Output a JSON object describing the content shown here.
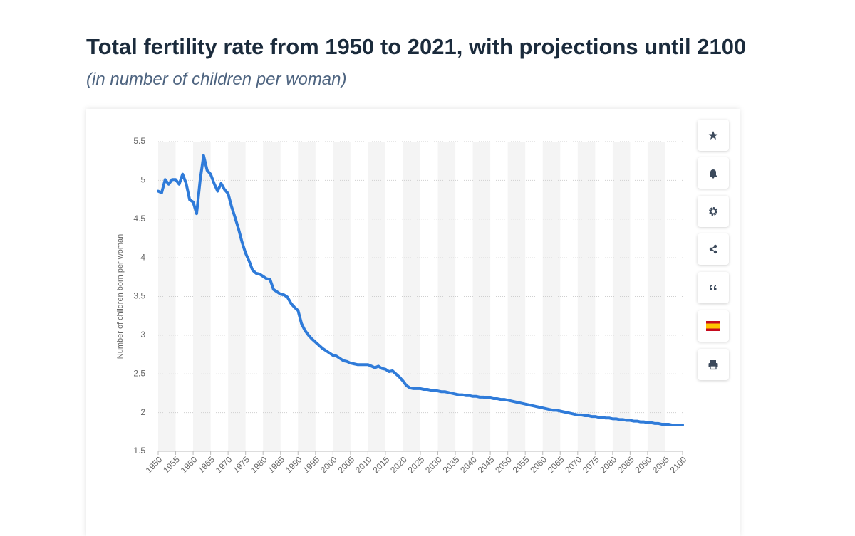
{
  "chart_data": {
    "type": "line",
    "title": "Total fertility rate from 1950 to 2021, with projections until 2100",
    "subtitle": "(in number of children per woman)",
    "y_label": "Number of children born per woman",
    "color": "#2f7bd9",
    "x": [
      1950,
      1951,
      1952,
      1953,
      1954,
      1955,
      1956,
      1957,
      1958,
      1959,
      1960,
      1961,
      1962,
      1963,
      1964,
      1965,
      1966,
      1967,
      1968,
      1969,
      1970,
      1971,
      1972,
      1973,
      1974,
      1975,
      1976,
      1977,
      1978,
      1979,
      1980,
      1981,
      1982,
      1983,
      1984,
      1985,
      1986,
      1987,
      1988,
      1989,
      1990,
      1991,
      1992,
      1993,
      1994,
      1995,
      1996,
      1997,
      1998,
      1999,
      2000,
      2001,
      2002,
      2003,
      2004,
      2005,
      2006,
      2007,
      2008,
      2009,
      2010,
      2011,
      2012,
      2013,
      2014,
      2015,
      2016,
      2017,
      2018,
      2019,
      2020,
      2021,
      2022,
      2023,
      2024,
      2025,
      2026,
      2027,
      2028,
      2029,
      2030,
      2031,
      2032,
      2033,
      2034,
      2035,
      2036,
      2037,
      2038,
      2039,
      2040,
      2041,
      2042,
      2043,
      2044,
      2045,
      2046,
      2047,
      2048,
      2049,
      2050,
      2051,
      2052,
      2053,
      2054,
      2055,
      2056,
      2057,
      2058,
      2059,
      2060,
      2061,
      2062,
      2063,
      2064,
      2065,
      2066,
      2067,
      2068,
      2069,
      2070,
      2071,
      2072,
      2073,
      2074,
      2075,
      2076,
      2077,
      2078,
      2079,
      2080,
      2081,
      2082,
      2083,
      2084,
      2085,
      2086,
      2087,
      2088,
      2089,
      2090,
      2091,
      2092,
      2093,
      2094,
      2095,
      2096,
      2097,
      2098,
      2099,
      2100
    ],
    "values": [
      4.86,
      4.84,
      5.01,
      4.95,
      5.01,
      5.01,
      4.95,
      5.08,
      4.96,
      4.75,
      4.72,
      4.57,
      5.0,
      5.32,
      5.13,
      5.08,
      4.96,
      4.86,
      4.96,
      4.88,
      4.83,
      4.66,
      4.52,
      4.37,
      4.2,
      4.06,
      3.96,
      3.84,
      3.8,
      3.79,
      3.76,
      3.73,
      3.72,
      3.59,
      3.56,
      3.53,
      3.52,
      3.49,
      3.41,
      3.36,
      3.32,
      3.15,
      3.06,
      3.0,
      2.95,
      2.91,
      2.87,
      2.83,
      2.8,
      2.77,
      2.74,
      2.73,
      2.7,
      2.67,
      2.66,
      2.64,
      2.63,
      2.62,
      2.62,
      2.62,
      2.62,
      2.6,
      2.58,
      2.6,
      2.57,
      2.56,
      2.53,
      2.54,
      2.5,
      2.46,
      2.41,
      2.35,
      2.32,
      2.31,
      2.31,
      2.31,
      2.3,
      2.3,
      2.29,
      2.29,
      2.28,
      2.27,
      2.27,
      2.26,
      2.25,
      2.24,
      2.23,
      2.23,
      2.22,
      2.22,
      2.21,
      2.21,
      2.2,
      2.2,
      2.19,
      2.19,
      2.18,
      2.18,
      2.17,
      2.17,
      2.16,
      2.15,
      2.14,
      2.13,
      2.12,
      2.11,
      2.1,
      2.09,
      2.08,
      2.07,
      2.06,
      2.05,
      2.04,
      2.03,
      2.03,
      2.02,
      2.01,
      2.0,
      1.99,
      1.98,
      1.97,
      1.97,
      1.96,
      1.96,
      1.95,
      1.95,
      1.94,
      1.94,
      1.93,
      1.93,
      1.92,
      1.92,
      1.91,
      1.91,
      1.9,
      1.9,
      1.89,
      1.89,
      1.88,
      1.88,
      1.87,
      1.87,
      1.86,
      1.86,
      1.85,
      1.85,
      1.85,
      1.84,
      1.84,
      1.84,
      1.84
    ],
    "xlim": [
      1950,
      2100
    ],
    "xticks": [
      1950,
      1955,
      1960,
      1965,
      1970,
      1975,
      1980,
      1985,
      1990,
      1995,
      2000,
      2005,
      2010,
      2015,
      2020,
      2025,
      2030,
      2035,
      2040,
      2045,
      2050,
      2055,
      2060,
      2065,
      2070,
      2075,
      2080,
      2085,
      2090,
      2095,
      2100
    ],
    "ylim": [
      1.5,
      5.5
    ],
    "yticks": [
      1.5,
      2,
      2.5,
      3,
      3.5,
      4,
      4.5,
      5,
      5.5
    ],
    "grid": true
  }
}
